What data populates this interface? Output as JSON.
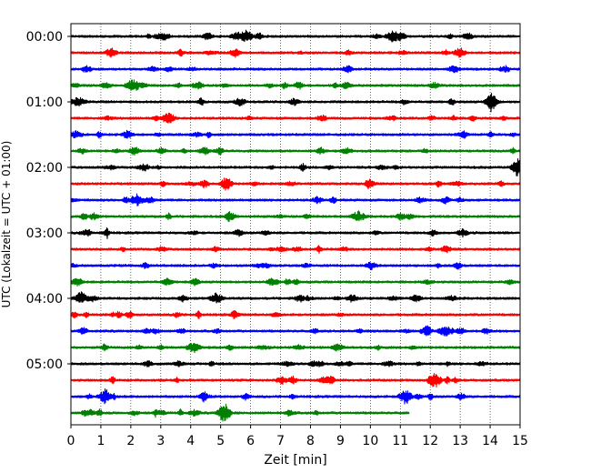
{
  "chart_data": {
    "type": "line",
    "title": "",
    "xlabel": "Zeit  [min]",
    "ylabel": "UTC (Lokalzeit = UTC + 01:00)",
    "xlim": [
      0,
      15
    ],
    "x_ticks": [
      "0",
      "1",
      "2",
      "3",
      "4",
      "5",
      "6",
      "7",
      "8",
      "9",
      "10",
      "11",
      "12",
      "13",
      "14",
      "15"
    ],
    "y_tick_labels": [
      "00:00",
      "01:00",
      "02:00",
      "03:00",
      "04:00",
      "05:00"
    ],
    "grid": "vertical dotted",
    "trace_interval_min": 15,
    "trace_count": 24,
    "last_trace_end_min": 11.3,
    "trace_colors": [
      "#000000",
      "#ff0000",
      "#0000ff",
      "#008000"
    ],
    "bursts": [
      {
        "trace": 0,
        "x": 5.85,
        "amp": 1.6
      },
      {
        "trace": 0,
        "x": 10.75,
        "amp": 1.4
      },
      {
        "trace": 3,
        "x": 2.05,
        "amp": 1.4
      },
      {
        "trace": 4,
        "x": 14.05,
        "amp": 1.6
      },
      {
        "trace": 5,
        "x": 3.25,
        "amp": 1.4
      },
      {
        "trace": 8,
        "x": 14.95,
        "amp": 2.6
      },
      {
        "trace": 10,
        "x": 2.2,
        "amp": 1.5
      },
      {
        "trace": 11,
        "x": 9.6,
        "amp": 1.3
      },
      {
        "trace": 16,
        "x": 4.85,
        "amp": 1.3
      },
      {
        "trace": 18,
        "x": 12.5,
        "amp": 1.4
      },
      {
        "trace": 19,
        "x": 4.1,
        "amp": 1.3
      },
      {
        "trace": 21,
        "x": 12.15,
        "amp": 2.0
      },
      {
        "trace": 22,
        "x": 1.15,
        "amp": 1.6
      },
      {
        "trace": 22,
        "x": 11.15,
        "amp": 1.4
      },
      {
        "trace": 23,
        "x": 5.1,
        "amp": 1.5
      }
    ]
  }
}
